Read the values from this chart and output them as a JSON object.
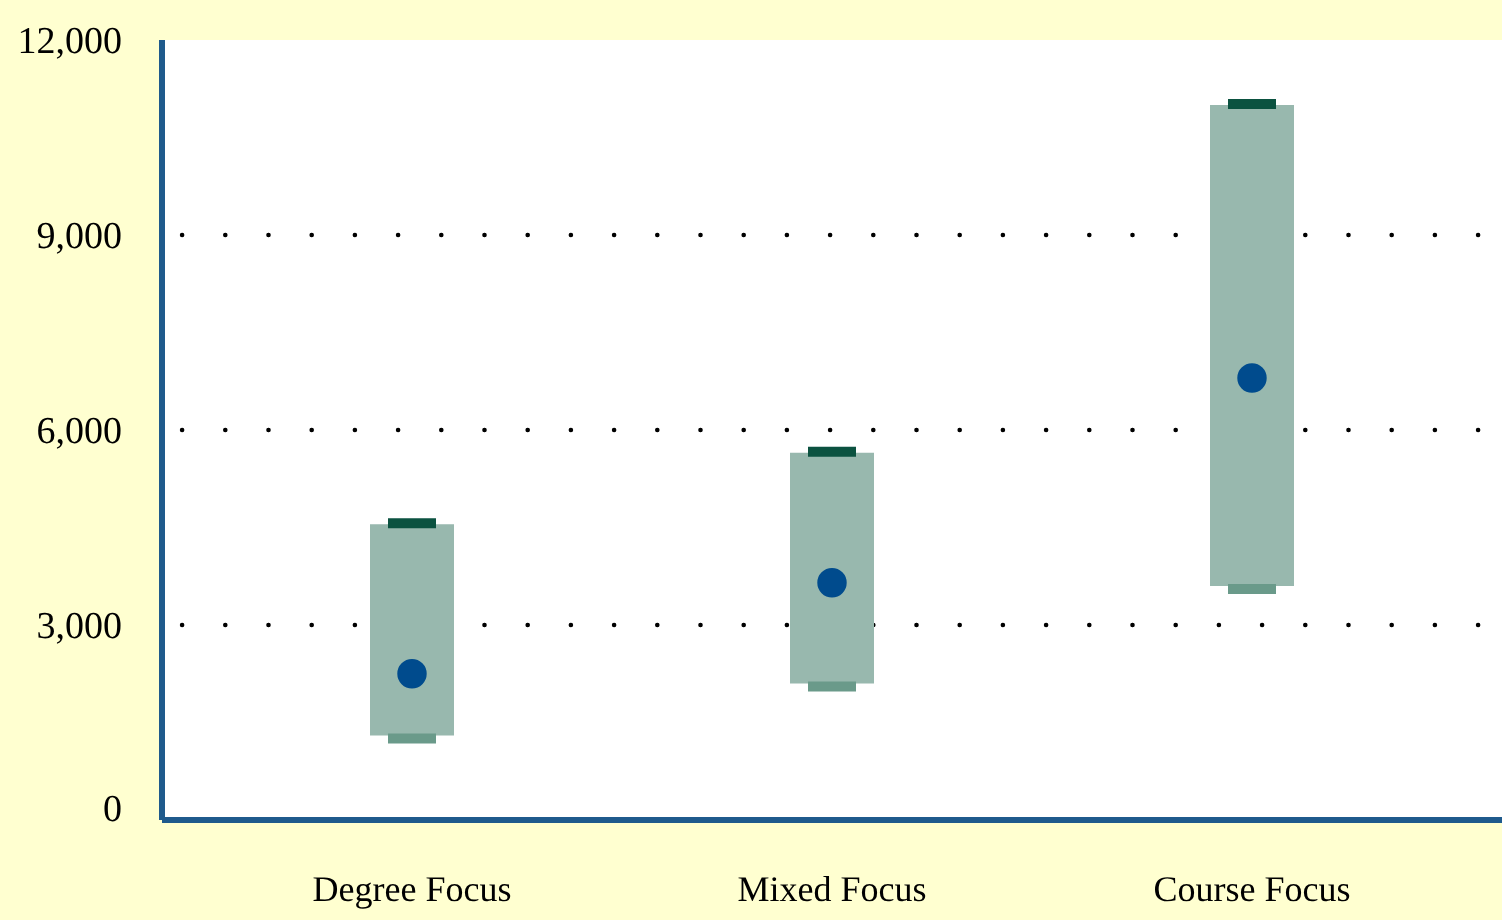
{
  "chart_data": {
    "type": "bar",
    "categories": [
      "Degree Focus",
      "Mixed Focus",
      "Course Focus"
    ],
    "series": [
      {
        "type": "bar",
        "color": "#98b8ae",
        "base": [
          1300,
          2100,
          3600
        ],
        "values": [
          3250,
          3550,
          7400
        ]
      },
      {
        "type": "scatter",
        "color": "#004b8d",
        "marker": "circle",
        "values": [
          2250,
          3650,
          6800
        ]
      }
    ],
    "ylim": [
      0,
      12000
    ],
    "yticks": [
      {
        "value": 0,
        "label": "0"
      },
      {
        "value": 3000,
        "label": "3,000"
      },
      {
        "value": 6000,
        "label": "6,000"
      },
      {
        "value": 9000,
        "label": "9,000"
      },
      {
        "value": 12000,
        "label": "12,000"
      }
    ],
    "grid": "y"
  }
}
